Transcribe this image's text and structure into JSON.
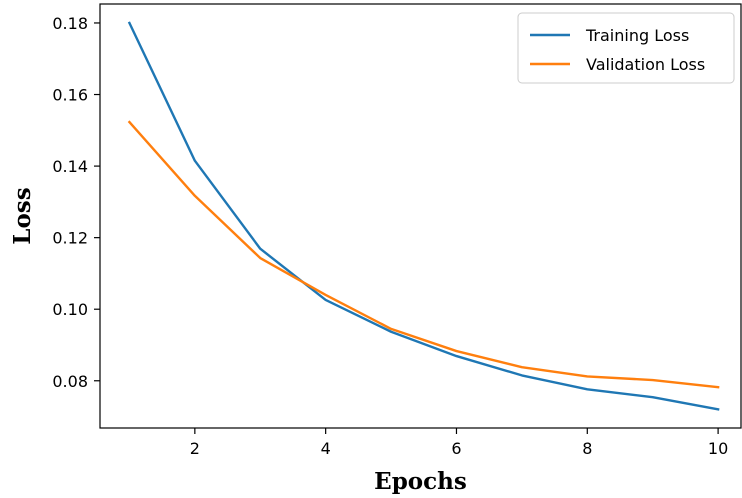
{
  "chart_data": {
    "type": "line",
    "title": "",
    "xlabel": "Epochs",
    "ylabel": "Loss",
    "xlim": [
      0.55,
      10.35
    ],
    "ylim": [
      0.0668,
      0.1853
    ],
    "xticks": [
      2,
      4,
      6,
      8,
      10
    ],
    "xtick_labels": [
      "2",
      "4",
      "6",
      "8",
      "10"
    ],
    "yticks": [
      0.08,
      0.1,
      0.12,
      0.14,
      0.16,
      0.18
    ],
    "ytick_labels": [
      "0.08",
      "0.10",
      "0.12",
      "0.14",
      "0.16",
      "0.18"
    ],
    "grid": false,
    "legend_position": "top-right",
    "x": [
      1,
      2,
      3,
      4,
      5,
      6,
      7,
      8,
      9,
      10
    ],
    "series": [
      {
        "name": "Training Loss",
        "color": "#1f77b4",
        "values": [
          0.18,
          0.1415,
          0.1169,
          0.1026,
          0.0937,
          0.0869,
          0.0815,
          0.0776,
          0.0754,
          0.072
        ]
      },
      {
        "name": "Validation Loss",
        "color": "#ff7f0e",
        "values": [
          0.1523,
          0.1317,
          0.1143,
          0.104,
          0.0945,
          0.0883,
          0.0838,
          0.0812,
          0.0802,
          0.0782
        ]
      }
    ]
  }
}
